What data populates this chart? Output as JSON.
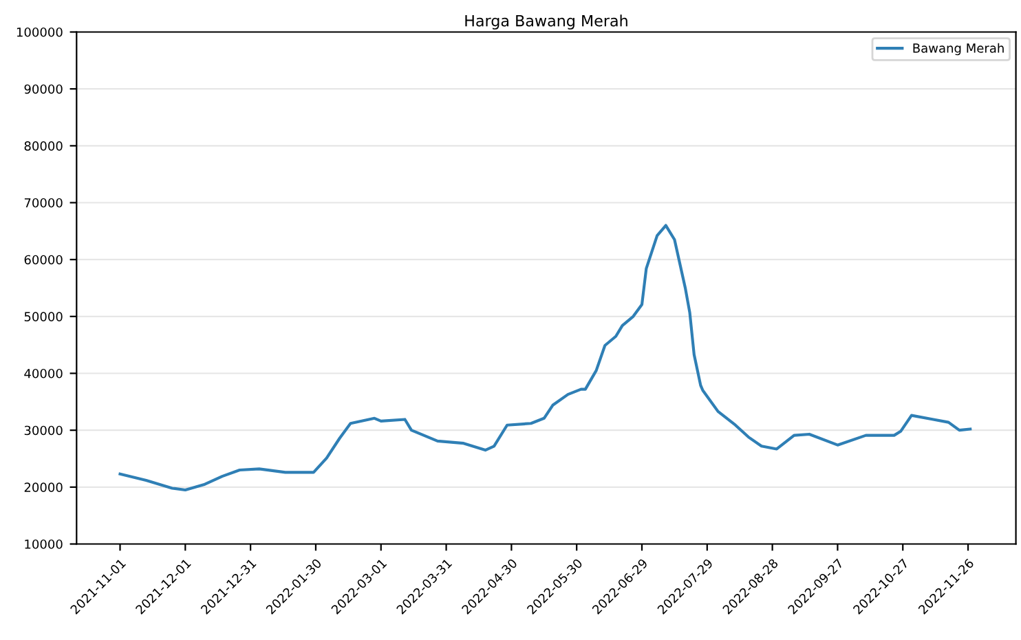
{
  "chart_data": {
    "type": "line",
    "title": "Harga Bawang Merah",
    "x": [
      "2021-11-01",
      "2021-11-13",
      "2021-11-25",
      "2021-12-01",
      "2021-12-10",
      "2021-12-18",
      "2021-12-26",
      "2022-01-04",
      "2022-01-16",
      "2022-01-29",
      "2022-02-04",
      "2022-02-10",
      "2022-02-15",
      "2022-02-26",
      "2022-03-01",
      "2022-03-12",
      "2022-03-15",
      "2022-03-27",
      "2022-04-08",
      "2022-04-18",
      "2022-04-22",
      "2022-04-28",
      "2022-05-09",
      "2022-05-15",
      "2022-05-19",
      "2022-05-26",
      "2022-06-01",
      "2022-06-03",
      "2022-06-08",
      "2022-06-12",
      "2022-06-17",
      "2022-06-20",
      "2022-06-25",
      "2022-06-29",
      "2022-07-01",
      "2022-07-06",
      "2022-07-10",
      "2022-07-14",
      "2022-07-19",
      "2022-07-21",
      "2022-07-23",
      "2022-07-26",
      "2022-07-27",
      "2022-08-03",
      "2022-08-11",
      "2022-08-17",
      "2022-08-23",
      "2022-08-30",
      "2022-09-07",
      "2022-09-14",
      "2022-09-27",
      "2022-10-10",
      "2022-10-23",
      "2022-10-26",
      "2022-10-31",
      "2022-11-10",
      "2022-11-17",
      "2022-11-22",
      "2022-11-27"
    ],
    "series": [
      {
        "name": "Bawang Merah",
        "color": "#2f7fb5",
        "values": [
          22300,
          21200,
          19800,
          19500,
          20500,
          21900,
          23000,
          23200,
          22600,
          22600,
          25100,
          28600,
          31200,
          32100,
          31600,
          31900,
          30000,
          28100,
          27700,
          26500,
          27200,
          30900,
          31200,
          32100,
          34400,
          36300,
          37200,
          37200,
          40500,
          44900,
          46500,
          48400,
          50000,
          52100,
          58400,
          64200,
          66000,
          63500,
          54900,
          50700,
          43300,
          37900,
          37000,
          33300,
          30900,
          28800,
          27200,
          26700,
          29100,
          29300,
          27400,
          29100,
          29100,
          29800,
          32600,
          31900,
          31400,
          30000,
          30200
        ]
      }
    ],
    "xlim": [
      "2021-10-12",
      "2022-12-18"
    ],
    "xticks": [
      "2021-11-01",
      "2021-12-01",
      "2021-12-31",
      "2022-01-30",
      "2022-03-01",
      "2022-03-31",
      "2022-04-30",
      "2022-05-30",
      "2022-06-29",
      "2022-07-29",
      "2022-08-28",
      "2022-09-27",
      "2022-10-27",
      "2022-11-26"
    ],
    "ylim": [
      10000,
      100000
    ],
    "yticks": [
      10000,
      20000,
      30000,
      40000,
      50000,
      60000,
      70000,
      80000,
      90000,
      100000
    ],
    "grid": "y",
    "legend": "top right"
  }
}
